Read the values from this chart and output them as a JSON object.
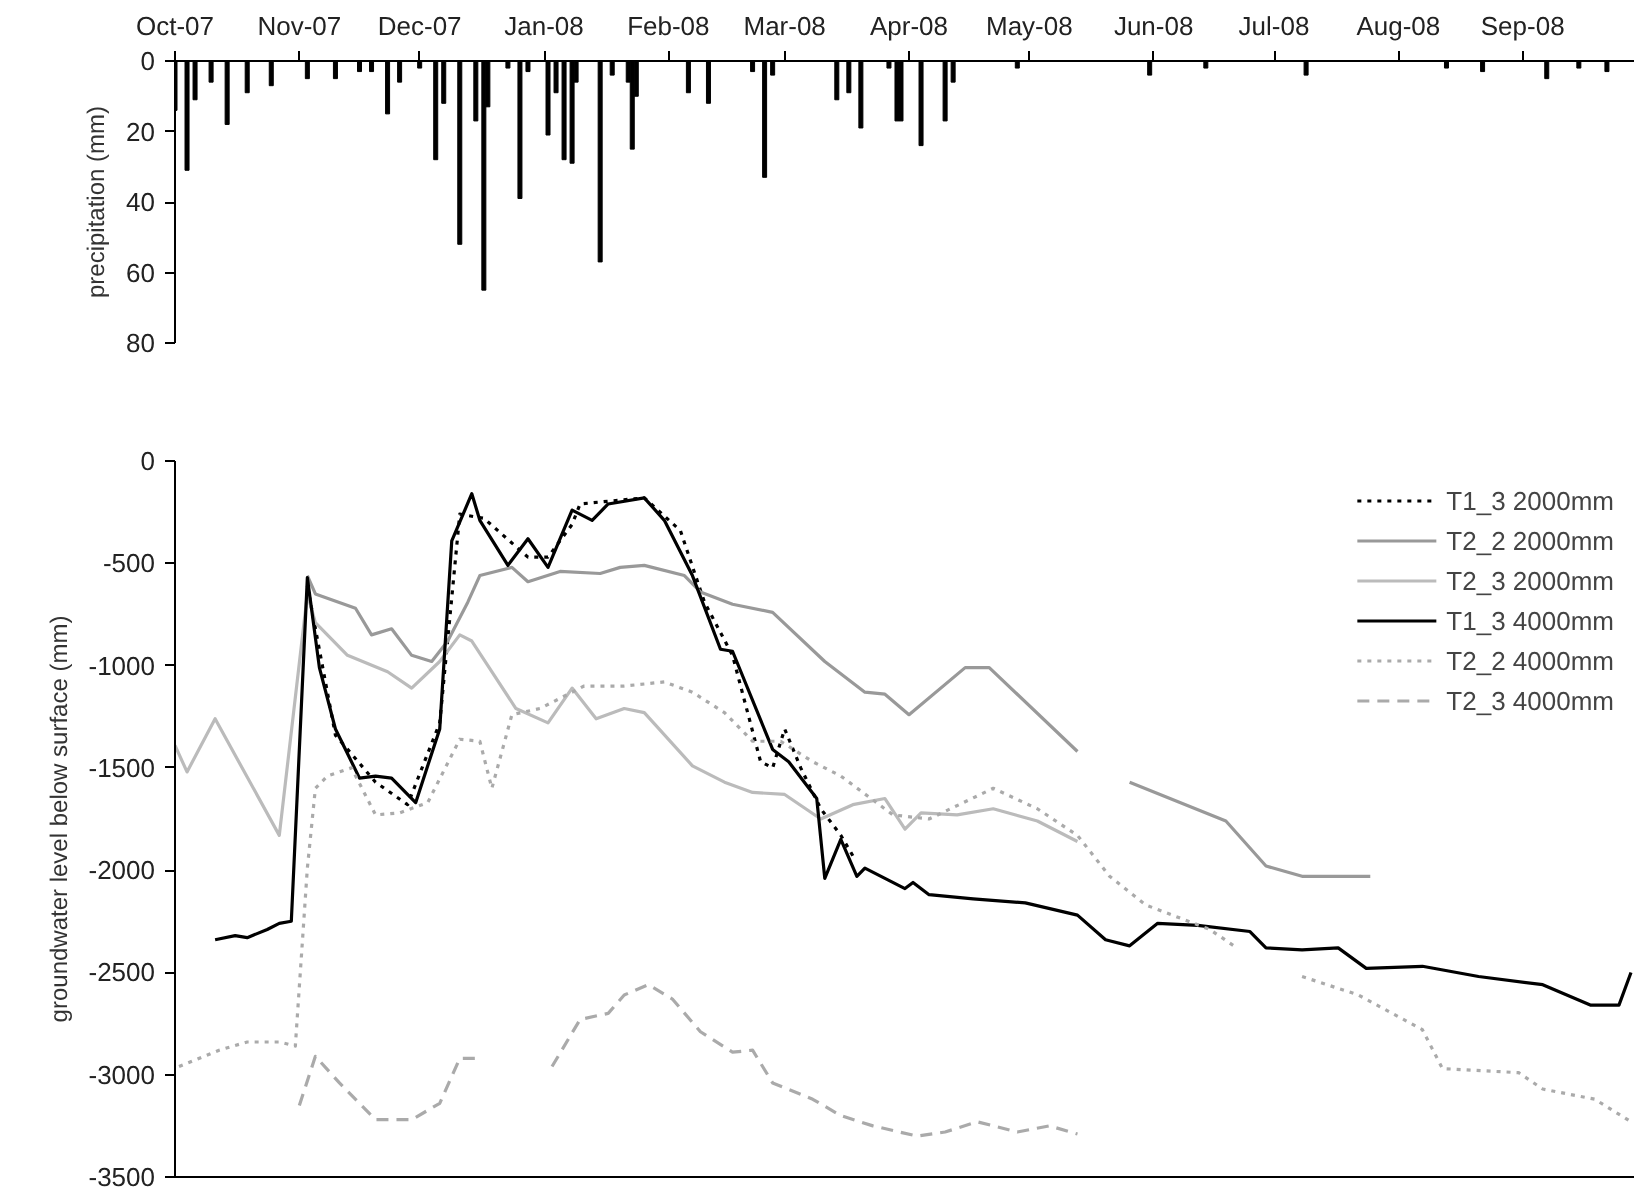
{
  "chart_data": [
    {
      "type": "bar",
      "ylabel": "precipitation (mm)",
      "color": "#000000",
      "x": [
        "2007-10-01",
        "2007-10-04",
        "2007-10-06",
        "2007-10-10",
        "2007-10-14",
        "2007-10-19",
        "2007-10-25",
        "2007-11-03",
        "2007-11-10",
        "2007-11-16",
        "2007-11-19",
        "2007-11-23",
        "2007-11-26",
        "2007-12-01",
        "2007-12-05",
        "2007-12-07",
        "2007-12-11",
        "2007-12-15",
        "2007-12-17",
        "2007-12-18",
        "2007-12-23",
        "2007-12-26",
        "2007-12-28",
        "2008-01-02",
        "2008-01-04",
        "2008-01-06",
        "2008-01-08",
        "2008-01-09",
        "2008-01-15",
        "2008-01-18",
        "2008-01-22",
        "2008-01-23",
        "2008-01-24",
        "2008-02-06",
        "2008-02-11",
        "2008-02-22",
        "2008-02-25",
        "2008-02-27",
        "2008-03-14",
        "2008-03-17",
        "2008-03-20",
        "2008-03-27",
        "2008-03-29",
        "2008-03-30",
        "2008-04-04",
        "2008-04-10",
        "2008-04-12",
        "2008-04-28",
        "2008-05-31",
        "2008-06-14",
        "2008-07-09",
        "2008-08-13",
        "2008-08-22",
        "2008-09-07",
        "2008-09-15",
        "2008-09-22"
      ],
      "values": [
        14,
        31,
        11,
        6,
        18,
        9,
        7,
        5,
        5,
        3,
        3,
        15,
        6,
        2,
        28,
        12,
        52,
        17,
        65,
        13,
        2,
        39,
        3,
        21,
        9,
        28,
        29,
        6,
        57,
        4,
        6,
        25,
        10,
        9,
        12,
        3,
        33,
        4,
        11,
        9,
        19,
        2,
        17,
        17,
        24,
        17,
        6,
        2,
        4,
        2,
        4,
        2,
        3,
        5,
        2,
        3
      ],
      "xlim": [
        "2007-10-01",
        "2008-09-29"
      ],
      "xticks": [
        {
          "value": "2007-10-01",
          "label": "Oct-07"
        },
        {
          "value": "2007-11-01",
          "label": "Nov-07"
        },
        {
          "value": "2007-12-01",
          "label": "Dec-07"
        },
        {
          "value": "2008-01-01",
          "label": "Jan-08"
        },
        {
          "value": "2008-02-01",
          "label": "Feb-08"
        },
        {
          "value": "2008-03-01",
          "label": "Mar-08"
        },
        {
          "value": "2008-04-01",
          "label": "Apr-08"
        },
        {
          "value": "2008-05-01",
          "label": "May-08"
        },
        {
          "value": "2008-06-01",
          "label": "Jun-08"
        },
        {
          "value": "2008-07-01",
          "label": "Jul-08"
        },
        {
          "value": "2008-08-01",
          "label": "Aug-08"
        },
        {
          "value": "2008-09-01",
          "label": "Sep-08"
        }
      ],
      "ylim": [
        80,
        0
      ],
      "yticks": [
        0,
        20,
        40,
        60,
        80
      ],
      "grid": false
    },
    {
      "type": "line",
      "ylabel": "groundwater level below surface (mm)",
      "legend": "top right",
      "tick_labels": "y",
      "grid": false,
      "xlim": [
        "2007-10-01",
        "2008-09-29"
      ],
      "ylim": [
        -3500,
        0
      ],
      "yticks": [
        0,
        -500,
        -1000,
        -1500,
        -2000,
        -2500,
        -3000,
        -3500
      ],
      "series": [
        {
          "name": "T1_3 2000mm",
          "color": "#000000",
          "line_style": "dotted",
          "x": [
            "2007-11-03",
            "2007-11-10",
            "2007-11-20",
            "2007-11-28",
            "2007-12-06",
            "2007-12-11",
            "2007-12-17",
            "2007-12-28",
            "2008-01-02",
            "2008-01-08",
            "2008-01-10",
            "2008-01-26",
            "2008-02-04",
            "2008-02-10",
            "2008-02-17",
            "2008-02-24",
            "2008-02-27",
            "2008-03-01",
            "2008-03-05",
            "2008-03-10",
            "2008-03-15",
            "2008-03-18"
          ],
          "values": [
            -610,
            -1340,
            -1570,
            -1680,
            -1280,
            -260,
            -280,
            -470,
            -470,
            -310,
            -210,
            -180,
            -340,
            -690,
            -950,
            -1470,
            -1500,
            -1310,
            -1500,
            -1700,
            -1830,
            -1930
          ]
        },
        {
          "name": "T2_2 2000mm",
          "color": "#999999",
          "line_style": "solid",
          "x": [
            "2007-11-03",
            "2007-11-05",
            "2007-11-15",
            "2007-11-19",
            "2007-11-24",
            "2007-11-29",
            "2007-12-04",
            "2007-12-08",
            "2007-12-13",
            "2007-12-16",
            "2007-12-24",
            "2007-12-28",
            "2008-01-05",
            "2008-01-15",
            "2008-01-20",
            "2008-01-26",
            "2008-02-05",
            "2008-02-09",
            "2008-02-17",
            "2008-02-27",
            "2008-03-11",
            "2008-03-21",
            "2008-03-26",
            "2008-04-01",
            "2008-04-15",
            "2008-04-21",
            "2008-05-13",
            "2008-05-19",
            "2008-05-26",
            "2008-06-19",
            "2008-06-29",
            "2008-07-08",
            "2008-07-25"
          ],
          "values": [
            -560,
            -650,
            -720,
            -850,
            -820,
            -950,
            -980,
            -880,
            -690,
            -560,
            -520,
            -590,
            -540,
            -550,
            -520,
            -510,
            -560,
            -640,
            -700,
            -740,
            -980,
            -1130,
            -1140,
            -1240,
            -1010,
            -1010,
            -1420,
            null,
            -1570,
            -1760,
            -1980,
            -2030,
            -2030
          ]
        },
        {
          "name": "T2_3 2000mm",
          "color": "#bbbbbb",
          "line_style": "solid",
          "x": [
            "2007-10-01",
            "2007-10-04",
            "2007-10-11",
            "2007-10-27",
            "2007-11-03",
            "2007-11-05",
            "2007-11-13",
            "2007-11-23",
            "2007-11-29",
            "2007-12-06",
            "2007-12-11",
            "2007-12-14",
            "2007-12-18",
            "2007-12-25",
            "2008-01-02",
            "2008-01-08",
            "2008-01-14",
            "2008-01-21",
            "2008-01-26",
            "2008-02-07",
            "2008-02-15",
            "2008-02-22",
            "2008-03-01",
            "2008-03-10",
            "2008-03-18",
            "2008-03-26",
            "2008-03-31",
            "2008-04-04",
            "2008-04-13",
            "2008-04-22",
            "2008-05-03",
            "2008-05-13"
          ],
          "values": [
            -1390,
            -1520,
            -1260,
            -1830,
            -650,
            -790,
            -950,
            -1030,
            -1110,
            -980,
            -850,
            -880,
            -1000,
            -1210,
            -1280,
            -1110,
            -1260,
            -1210,
            -1230,
            -1490,
            -1570,
            -1620,
            -1630,
            -1750,
            -1680,
            -1650,
            -1800,
            -1720,
            -1730,
            -1700,
            -1760,
            -1860
          ]
        },
        {
          "name": "T1_3 4000mm",
          "color": "#000000",
          "line_style": "solid",
          "x": [
            "2007-10-11",
            "2007-10-16",
            "2007-10-19",
            "2007-10-24",
            "2007-10-27",
            "2007-10-30",
            "2007-11-03",
            "2007-11-06",
            "2007-11-10",
            "2007-11-16",
            "2007-11-20",
            "2007-11-24",
            "2007-11-30",
            "2007-12-06",
            "2007-12-09",
            "2007-12-14",
            "2007-12-16",
            "2007-12-23",
            "2007-12-28",
            "2008-01-02",
            "2008-01-08",
            "2008-01-13",
            "2008-01-17",
            "2008-01-26",
            "2008-01-31",
            "2008-02-07",
            "2008-02-14",
            "2008-02-17",
            "2008-02-27",
            "2008-03-02",
            "2008-03-09",
            "2008-03-11",
            "2008-03-15",
            "2008-03-19",
            "2008-03-21",
            "2008-03-31",
            "2008-04-02",
            "2008-04-06",
            "2008-04-17",
            "2008-04-30",
            "2008-05-13",
            "2008-05-20",
            "2008-05-26",
            "2008-06-02",
            "2008-06-12",
            "2008-06-25",
            "2008-06-29",
            "2008-07-08",
            "2008-07-17",
            "2008-07-24",
            "2008-08-07",
            "2008-08-21",
            "2008-09-06",
            "2008-09-18",
            "2008-09-25",
            "2008-09-28"
          ],
          "values": [
            -2340,
            -2320,
            -2330,
            -2290,
            -2260,
            -2250,
            -570,
            -1010,
            -1310,
            -1550,
            -1540,
            -1550,
            -1670,
            -1310,
            -390,
            -160,
            -290,
            -510,
            -380,
            -520,
            -240,
            -290,
            -210,
            -180,
            -290,
            -560,
            -920,
            -930,
            -1410,
            -1470,
            -1650,
            -2040,
            -1850,
            -2030,
            -1990,
            -2090,
            -2060,
            -2120,
            -2140,
            -2160,
            -2220,
            -2340,
            -2370,
            -2260,
            -2270,
            -2300,
            -2380,
            -2390,
            -2380,
            -2480,
            -2470,
            -2520,
            -2560,
            -2660,
            -2660,
            -2500
          ]
        },
        {
          "name": "T2_2 4000mm",
          "color": "#aaaaaa",
          "line_style": "dotted",
          "x": [
            "2007-10-02",
            "2007-10-12",
            "2007-10-19",
            "2007-10-27",
            "2007-10-31",
            "2007-11-03",
            "2007-11-05",
            "2007-11-08",
            "2007-11-14",
            "2007-11-20",
            "2007-11-26",
            "2007-12-03",
            "2007-12-11",
            "2007-12-16",
            "2007-12-19",
            "2007-12-24",
            "2007-12-31",
            "2008-01-07",
            "2008-01-11",
            "2008-01-21",
            "2008-01-31",
            "2008-02-07",
            "2008-02-15",
            "2008-02-22",
            "2008-02-29",
            "2008-03-08",
            "2008-03-15",
            "2008-03-28",
            "2008-04-06",
            "2008-04-22",
            "2008-05-03",
            "2008-05-13",
            "2008-05-21",
            "2008-05-30",
            "2008-06-15",
            "2008-06-21",
            "2008-06-29",
            "2008-07-08",
            "2008-07-22",
            "2008-08-07",
            "2008-08-12",
            "2008-08-31",
            "2008-09-06",
            "2008-09-19",
            "2008-09-28"
          ],
          "values": [
            -2960,
            -2880,
            -2840,
            -2840,
            -2860,
            -1990,
            -1600,
            -1540,
            -1500,
            -1730,
            -1720,
            -1670,
            -1360,
            -1370,
            -1600,
            -1240,
            -1210,
            -1140,
            -1100,
            -1100,
            -1080,
            -1130,
            -1230,
            -1370,
            -1370,
            -1470,
            -1540,
            -1730,
            -1750,
            -1600,
            -1700,
            -1830,
            -2030,
            -2170,
            -2290,
            -2370,
            null,
            -2520,
            -2610,
            -2780,
            -2970,
            -2990,
            -3070,
            -3120,
            -3230
          ]
        },
        {
          "name": "T2_3 4000mm",
          "color": "#aaaaaa",
          "line_style": "dashed",
          "x": [
            "2007-11-01",
            "2007-11-05",
            "2007-11-11",
            "2007-11-20",
            "2007-11-29",
            "2007-12-06",
            "2007-12-11",
            "2007-12-15",
            "2007-12-25",
            "2008-01-03",
            "2008-01-10",
            "2008-01-17",
            "2008-01-21",
            "2008-01-27",
            "2008-02-02",
            "2008-02-09",
            "2008-02-17",
            "2008-02-22",
            "2008-02-27",
            "2008-03-08",
            "2008-03-15",
            "2008-03-23",
            "2008-04-03",
            "2008-04-10",
            "2008-04-18",
            "2008-04-28",
            "2008-05-06",
            "2008-05-13"
          ],
          "values": [
            -3150,
            -2910,
            -3040,
            -3220,
            -3220,
            -3140,
            -2920,
            -2920,
            null,
            -2960,
            -2730,
            -2700,
            -2610,
            -2560,
            -2630,
            -2790,
            -2890,
            -2880,
            -3040,
            -3120,
            -3200,
            -3250,
            -3300,
            -3280,
            -3230,
            -3280,
            -3250,
            -3290
          ]
        }
      ]
    }
  ]
}
